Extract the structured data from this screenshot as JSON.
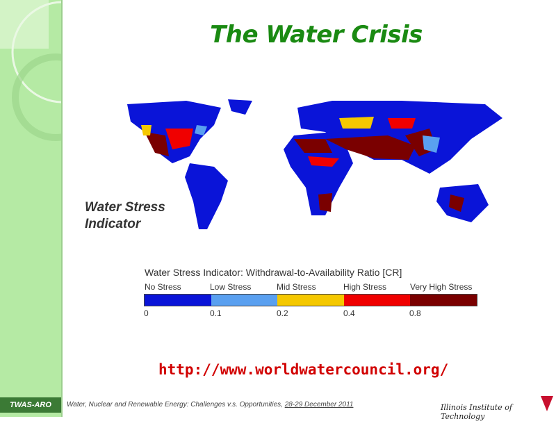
{
  "slide": {
    "title": "The Water Crisis",
    "map_label_line1": "Water Stress",
    "map_label_line2": "Indicator",
    "url": "http://www.worldwatercouncil.org/"
  },
  "legend": {
    "title": "Water Stress Indicator: Withdrawal-to-Availability Ratio [CR]",
    "categories": [
      "No Stress",
      "Low Stress",
      "Mid Stress",
      "High Stress",
      "Very High Stress"
    ],
    "colors": [
      "#0a14d8",
      "#5aa0f0",
      "#f5c800",
      "#f00000",
      "#7a0000"
    ],
    "ticks": [
      "0",
      "0.1",
      "0.2",
      "0.4",
      "0.8"
    ]
  },
  "footer": {
    "badge": "TWAS-ARO",
    "text": "Water, Nuclear and Renewable Energy: Challenges v.s. Opportunities, ",
    "date": "28-29 December 2011",
    "institute": "Illinois Institute of Technology"
  }
}
